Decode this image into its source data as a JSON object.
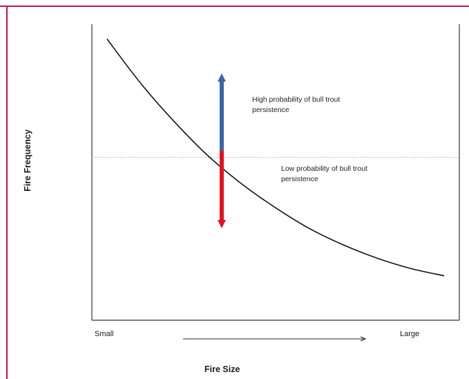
{
  "colors": {
    "frame_border": "#c4104f",
    "axis": "#333333",
    "curve": "#111111",
    "threshold_line": "#9cc3e6",
    "up_arrow": "#3a66a8",
    "down_arrow": "#e8101f"
  },
  "chart_data": {
    "type": "line",
    "title": "",
    "xlabel": "Fire Size",
    "ylabel": "Fire Frequency",
    "x_tick_labels": [
      "Small",
      "Large"
    ],
    "series": [
      {
        "x": [
          0.0,
          0.1,
          0.2,
          0.3,
          0.4,
          0.5,
          0.6,
          0.7,
          0.8,
          0.9,
          1.0
        ],
        "y": [
          0.95,
          0.8,
          0.67,
          0.555,
          0.46,
          0.38,
          0.31,
          0.255,
          0.21,
          0.175,
          0.15
        ]
      }
    ],
    "threshold_y": 0.55,
    "grid": false,
    "legend": "none"
  },
  "annotations": {
    "high": "High probability of bull trout persistence",
    "low": "Low probability of bull trout persistence"
  },
  "arrows": {
    "up": "blue-up-arrow",
    "down": "red-down-arrow",
    "x_direction": "right-arrow"
  }
}
